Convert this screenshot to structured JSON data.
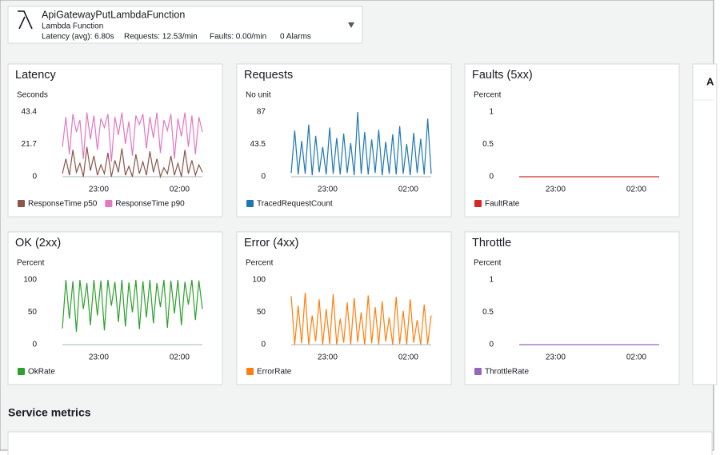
{
  "header": {
    "title": "ApiGatewayPutLambdaFunction",
    "subtitle": "Lambda Function",
    "stats": [
      "Latency (avg): 6.80s",
      "Requests: 12.53/min",
      "Faults: 0.00/min",
      "0 Alarms"
    ]
  },
  "side_panel_title": "A",
  "section_title": "Service metrics",
  "chart_data": [
    {
      "type": "line",
      "title": "Latency",
      "ylabel": "Seconds",
      "x": [
        21.65,
        21.78,
        21.91,
        22.04,
        22.17,
        22.3,
        22.43,
        22.56,
        22.69,
        22.82,
        22.95,
        23.08,
        23.21,
        23.34,
        23.47,
        23.6,
        23.73,
        23.86,
        23.99,
        24.12,
        24.25,
        24.38,
        24.51,
        24.64,
        24.77,
        24.9,
        25.03,
        25.16,
        25.29,
        25.42,
        25.55,
        25.68,
        25.81,
        25.94,
        26.07,
        26.2,
        26.33,
        26.46,
        26.59,
        26.72,
        26.85
      ],
      "xlim": [
        21.65,
        26.85
      ],
      "xticks": [
        {
          "value": 23,
          "label": "23:00"
        },
        {
          "value": 26,
          "label": "02:00"
        }
      ],
      "ylim": [
        0,
        43.4
      ],
      "yticks": [
        0,
        21.7,
        43.4
      ],
      "series": [
        {
          "name": "ResponseTime p50",
          "color": "#8c564b",
          "values": [
            2,
            12,
            1,
            18,
            3,
            9,
            0,
            20,
            4,
            14,
            1,
            8,
            2,
            16,
            0,
            11,
            3,
            19,
            1,
            7,
            0,
            15,
            2,
            10,
            1,
            17,
            3,
            12,
            0,
            6,
            2,
            14,
            1,
            9,
            0,
            18,
            2,
            11,
            1,
            8,
            3
          ]
        },
        {
          "name": "ResponseTime p90",
          "color": "#e377c2",
          "values": [
            20,
            40,
            15,
            42,
            30,
            38,
            12,
            43,
            25,
            41,
            18,
            39,
            33,
            42,
            10,
            40,
            28,
            43,
            22,
            37,
            14,
            41,
            35,
            42,
            19,
            40,
            26,
            43,
            16,
            38,
            31,
            42,
            12,
            39,
            27,
            43,
            20,
            41,
            15,
            40,
            30
          ]
        }
      ]
    },
    {
      "type": "line",
      "title": "Requests",
      "ylabel": "No unit",
      "x": [
        21.65,
        21.78,
        21.91,
        22.04,
        22.17,
        22.3,
        22.43,
        22.56,
        22.69,
        22.82,
        22.95,
        23.08,
        23.21,
        23.34,
        23.47,
        23.6,
        23.73,
        23.86,
        23.99,
        24.12,
        24.25,
        24.38,
        24.51,
        24.64,
        24.77,
        24.9,
        25.03,
        25.16,
        25.29,
        25.42,
        25.55,
        25.68,
        25.81,
        25.94,
        26.07,
        26.2,
        26.33,
        26.46,
        26.59,
        26.72,
        26.85
      ],
      "xlim": [
        21.65,
        26.85
      ],
      "xticks": [
        {
          "value": 23,
          "label": "23:00"
        },
        {
          "value": 26,
          "label": "02:00"
        }
      ],
      "ylim": [
        0,
        87
      ],
      "yticks": [
        0,
        43.5,
        87
      ],
      "series": [
        {
          "name": "TracedRequestCount",
          "color": "#1f77b4",
          "values": [
            5,
            62,
            3,
            48,
            4,
            70,
            2,
            55,
            6,
            40,
            3,
            66,
            4,
            52,
            3,
            58,
            5,
            45,
            2,
            87,
            4,
            60,
            3,
            50,
            5,
            63,
            2,
            47,
            4,
            57,
            3,
            68,
            4,
            44,
            2,
            59,
            5,
            51,
            3,
            78,
            4
          ]
        }
      ]
    },
    {
      "type": "line",
      "title": "Faults (5xx)",
      "ylabel": "Percent",
      "x": [
        21.65,
        21.78,
        21.91,
        22.04,
        22.17,
        22.3,
        22.43,
        22.56,
        22.69,
        22.82,
        22.95,
        23.08,
        23.21,
        23.34,
        23.47,
        23.6,
        23.73,
        23.86,
        23.99,
        24.12,
        24.25,
        24.38,
        24.51,
        24.64,
        24.77,
        24.9,
        25.03,
        25.16,
        25.29,
        25.42,
        25.55,
        25.68,
        25.81,
        25.94,
        26.07,
        26.2,
        26.33,
        26.46,
        26.59,
        26.72,
        26.85
      ],
      "xlim": [
        21.65,
        26.85
      ],
      "xticks": [
        {
          "value": 23,
          "label": "23:00"
        },
        {
          "value": 26,
          "label": "02:00"
        }
      ],
      "ylim": [
        0,
        1
      ],
      "yticks": [
        0,
        0.5,
        1
      ],
      "series": [
        {
          "name": "FaultRate",
          "color": "#d62728",
          "values": [
            0,
            0,
            0,
            0,
            0,
            0,
            0,
            0,
            0,
            0,
            0,
            0,
            0,
            0,
            0,
            0,
            0,
            0,
            0,
            0,
            0,
            0,
            0,
            0,
            0,
            0,
            0,
            0,
            0,
            0,
            0,
            0,
            0,
            0,
            0,
            0,
            0,
            0,
            0,
            0,
            0
          ]
        }
      ]
    },
    {
      "type": "line",
      "title": "OK (2xx)",
      "ylabel": "Percent",
      "x": [
        21.65,
        21.78,
        21.91,
        22.04,
        22.17,
        22.3,
        22.43,
        22.56,
        22.69,
        22.82,
        22.95,
        23.08,
        23.21,
        23.34,
        23.47,
        23.6,
        23.73,
        23.86,
        23.99,
        24.12,
        24.25,
        24.38,
        24.51,
        24.64,
        24.77,
        24.9,
        25.03,
        25.16,
        25.29,
        25.42,
        25.55,
        25.68,
        25.81,
        25.94,
        26.07,
        26.2,
        26.33,
        26.46,
        26.59,
        26.72,
        26.85
      ],
      "xlim": [
        21.65,
        26.85
      ],
      "xticks": [
        {
          "value": 23,
          "label": "23:00"
        },
        {
          "value": 26,
          "label": "02:00"
        }
      ],
      "ylim": [
        0,
        100
      ],
      "yticks": [
        0,
        50,
        100
      ],
      "series": [
        {
          "name": "OkRate",
          "color": "#2ca02c",
          "values": [
            25,
            100,
            40,
            98,
            20,
            100,
            55,
            95,
            30,
            100,
            45,
            99,
            22,
            100,
            60,
            97,
            35,
            100,
            28,
            96,
            50,
            100,
            24,
            98,
            42,
            100,
            33,
            95,
            58,
            100,
            26,
            99,
            48,
            100,
            30,
            97,
            62,
            100,
            38,
            99,
            55
          ]
        }
      ]
    },
    {
      "type": "line",
      "title": "Error (4xx)",
      "ylabel": "Percent",
      "x": [
        21.65,
        21.78,
        21.91,
        22.04,
        22.17,
        22.3,
        22.43,
        22.56,
        22.69,
        22.82,
        22.95,
        23.08,
        23.21,
        23.34,
        23.47,
        23.6,
        23.73,
        23.86,
        23.99,
        24.12,
        24.25,
        24.38,
        24.51,
        24.64,
        24.77,
        24.9,
        25.03,
        25.16,
        25.29,
        25.42,
        25.55,
        25.68,
        25.81,
        25.94,
        26.07,
        26.2,
        26.33,
        26.46,
        26.59,
        26.72,
        26.85
      ],
      "xlim": [
        21.65,
        26.85
      ],
      "xticks": [
        {
          "value": 23,
          "label": "23:00"
        },
        {
          "value": 26,
          "label": "02:00"
        }
      ],
      "ylim": [
        0,
        100
      ],
      "yticks": [
        0,
        50,
        100
      ],
      "series": [
        {
          "name": "ErrorRate",
          "color": "#ff7f0e",
          "values": [
            75,
            0,
            60,
            2,
            80,
            0,
            45,
            5,
            70,
            0,
            55,
            1,
            78,
            0,
            40,
            3,
            65,
            0,
            72,
            4,
            50,
            0,
            76,
            2,
            58,
            0,
            67,
            5,
            42,
            0,
            74,
            1,
            52,
            0,
            70,
            3,
            38,
            0,
            62,
            1,
            45
          ]
        }
      ]
    },
    {
      "type": "line",
      "title": "Throttle",
      "ylabel": "Percent",
      "x": [
        21.65,
        21.78,
        21.91,
        22.04,
        22.17,
        22.3,
        22.43,
        22.56,
        22.69,
        22.82,
        22.95,
        23.08,
        23.21,
        23.34,
        23.47,
        23.6,
        23.73,
        23.86,
        23.99,
        24.12,
        24.25,
        24.38,
        24.51,
        24.64,
        24.77,
        24.9,
        25.03,
        25.16,
        25.29,
        25.42,
        25.55,
        25.68,
        25.81,
        25.94,
        26.07,
        26.2,
        26.33,
        26.46,
        26.59,
        26.72,
        26.85
      ],
      "xlim": [
        21.65,
        26.85
      ],
      "xticks": [
        {
          "value": 23,
          "label": "23:00"
        },
        {
          "value": 26,
          "label": "02:00"
        }
      ],
      "ylim": [
        0,
        1
      ],
      "yticks": [
        0,
        0.5,
        1
      ],
      "series": [
        {
          "name": "ThrottleRate",
          "color": "#9467bd",
          "values": [
            0,
            0,
            0,
            0,
            0,
            0,
            0,
            0,
            0,
            0,
            0,
            0,
            0,
            0,
            0,
            0,
            0,
            0,
            0,
            0,
            0,
            0,
            0,
            0,
            0,
            0,
            0,
            0,
            0,
            0,
            0,
            0,
            0,
            0,
            0,
            0,
            0,
            0,
            0,
            0,
            0
          ]
        }
      ]
    }
  ]
}
